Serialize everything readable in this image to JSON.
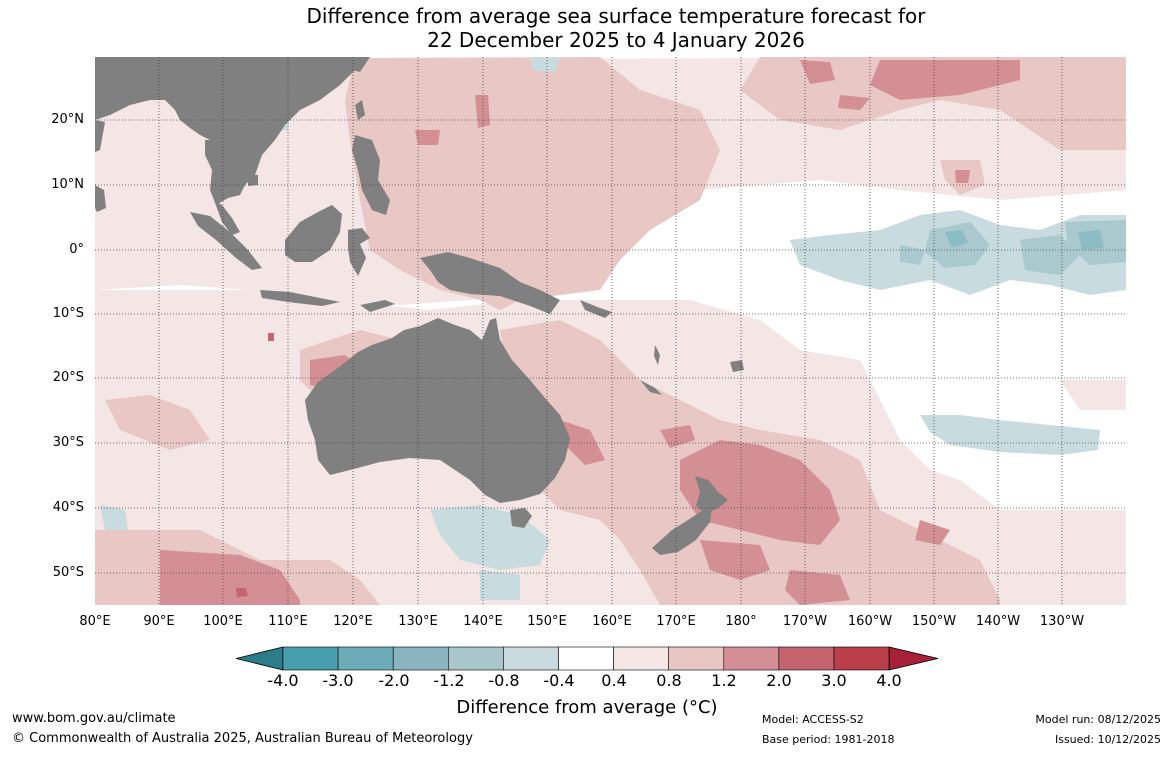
{
  "title": {
    "line1": "Difference from average sea surface temperature forecast for",
    "line2": "22 December 2025 to 4 January 2026"
  },
  "map": {
    "lat_labels": [
      "20°N",
      "10°N",
      "0°",
      "10°S",
      "20°S",
      "30°S",
      "40°S",
      "50°S"
    ],
    "lon_labels": [
      "80°E",
      "90°E",
      "100°E",
      "110°E",
      "120°E",
      "130°E",
      "140°E",
      "150°E",
      "160°E",
      "170°E",
      "180°",
      "170°W",
      "160°W",
      "150°W",
      "140°W",
      "130°W"
    ],
    "colors": {
      "land": "#808080",
      "neutral": "#ffffff",
      "warm_0_4": "#f4e6e5",
      "warm_0_8": "#e8c7c4",
      "warm_1_2": "#d48f95",
      "warm_2_0": "#c56570",
      "cool_0_4": "#c8dbde",
      "cool_0_8": "#a9c9cf",
      "cool_1_2": "#8cbcc6"
    }
  },
  "colorbar": {
    "title": "Difference from average (°C)",
    "labels": [
      "-4.0",
      "-3.0",
      "-2.0",
      "-1.2",
      "-0.8",
      "-0.4",
      "0.4",
      "0.8",
      "1.2",
      "2.0",
      "3.0",
      "4.0"
    ],
    "colors": [
      "#2b7d89",
      "#479fae",
      "#6bacb8",
      "#8ab5c0",
      "#a9c6cb",
      "#c8dadd",
      "#ffffff",
      "#f4e6e4",
      "#e7c6c3",
      "#d48e95",
      "#c5646e",
      "#bb3f4b",
      "#a81f38"
    ]
  },
  "footer": {
    "website": "www.bom.gov.au/climate",
    "copyright": "© Commonwealth of Australia 2025, Australian Bureau of Meteorology",
    "model": "Model: ACCESS-S2",
    "base_period": "Base period: 1981-2018",
    "model_run": "Model run: 08/12/2025",
    "issued": "Issued: 10/12/2025"
  }
}
